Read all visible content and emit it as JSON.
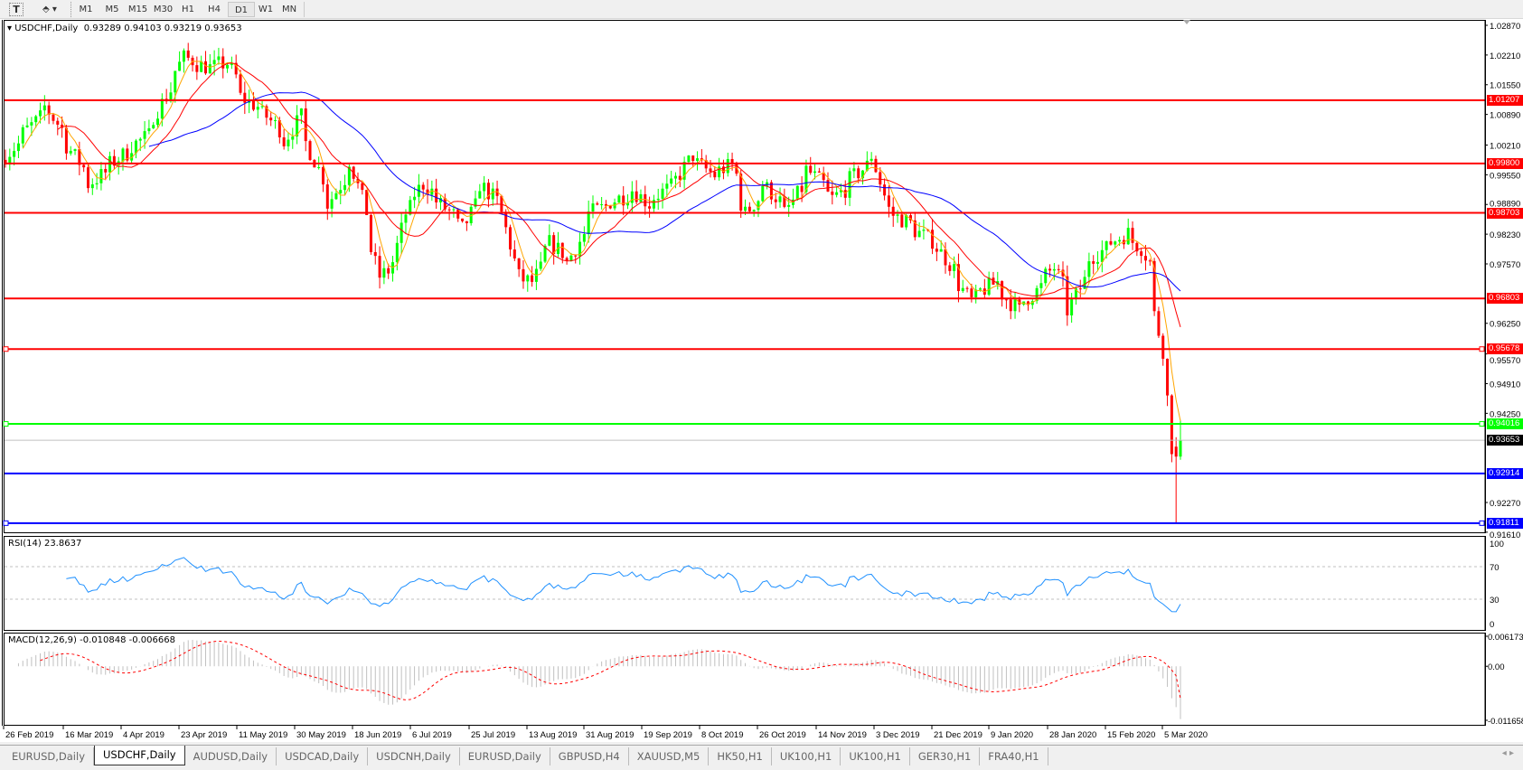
{
  "toolbar": {
    "icons": [
      "text-tool-icon",
      "objects-dropdown-icon"
    ],
    "timeframes": [
      "M1",
      "M5",
      "M15",
      "M30",
      "H1",
      "H4",
      "D1",
      "W1",
      "MN"
    ],
    "active_timeframe": "D1"
  },
  "chart": {
    "symbol_label": "USDCHF,Daily",
    "ohlc_label": "0.93289 0.94103 0.93219 0.93653",
    "rsi_label": "RSI(14) 23.8637",
    "macd_label": "MACD(12,26,9) -0.010848 -0.006668"
  },
  "tabs": [
    "EURUSD,Daily",
    "USDCHF,Daily",
    "AUDUSD,Daily",
    "USDCAD,Daily",
    "USDCNH,Daily",
    "EURUSD,Daily",
    "GBPUSD,H4",
    "XAUUSD,M5",
    "HK50,H1",
    "UK100,H1",
    "UK100,H1",
    "GER30,H1",
    "FRA40,H1"
  ],
  "active_tab": 1,
  "chart_data": {
    "type": "candlestick",
    "symbol": "USDCHF",
    "timeframe": "Daily",
    "last_bar": {
      "open": 0.93289,
      "high": 0.94103,
      "low": 0.93219,
      "close": 0.93653
    },
    "up_color": "#00ff00",
    "down_color": "#ff0000",
    "close_keypoints": [
      [
        "2019-02-26",
        0.9998
      ],
      [
        "2019-03-11",
        1.0106
      ],
      [
        "2019-03-25",
        0.9934
      ],
      [
        "2019-04-04",
        0.9998
      ],
      [
        "2019-04-12",
        1.0042
      ],
      [
        "2019-04-24",
        1.0215
      ],
      [
        "2019-05-02",
        1.0193
      ],
      [
        "2019-05-08",
        1.0203
      ],
      [
        "2019-05-13",
        1.0128
      ],
      [
        "2019-05-21",
        1.0084
      ],
      [
        "2019-05-27",
        1.003
      ],
      [
        "2019-05-31",
        1.0084
      ],
      [
        "2019-06-10",
        0.989
      ],
      [
        "2019-06-17",
        0.9988
      ],
      [
        "2019-06-26",
        0.9729
      ],
      [
        "2019-07-01",
        0.9761
      ],
      [
        "2019-07-04",
        0.9869
      ],
      [
        "2019-07-10",
        0.9934
      ],
      [
        "2019-07-23",
        0.9835
      ],
      [
        "2019-07-29",
        0.9934
      ],
      [
        "2019-08-05",
        0.9869
      ],
      [
        "2019-08-09",
        0.9729
      ],
      [
        "2019-08-14",
        0.9717
      ],
      [
        "2019-08-20",
        0.9803
      ],
      [
        "2019-08-26",
        0.9761
      ],
      [
        "2019-09-02",
        0.9869
      ],
      [
        "2019-09-16",
        0.9922
      ],
      [
        "2019-09-20",
        0.989
      ],
      [
        "2019-09-30",
        0.9944
      ],
      [
        "2019-10-04",
        0.9998
      ],
      [
        "2019-10-11",
        0.9954
      ],
      [
        "2019-10-17",
        0.9976
      ],
      [
        "2019-10-22",
        0.9869
      ],
      [
        "2019-10-28",
        0.9934
      ],
      [
        "2019-11-04",
        0.9869
      ],
      [
        "2019-11-11",
        0.9966
      ],
      [
        "2019-11-19",
        0.9902
      ],
      [
        "2019-11-25",
        0.9944
      ],
      [
        "2019-12-02",
        0.9998
      ],
      [
        "2019-12-06",
        0.9879
      ],
      [
        "2019-12-13",
        0.9847
      ],
      [
        "2019-12-23",
        0.9793
      ],
      [
        "2020-01-02",
        0.9675
      ],
      [
        "2020-01-10",
        0.9717
      ],
      [
        "2020-01-17",
        0.9653
      ],
      [
        "2020-01-23",
        0.9697
      ],
      [
        "2020-01-29",
        0.9749
      ],
      [
        "2020-02-03",
        0.9653
      ],
      [
        "2020-02-10",
        0.9771
      ],
      [
        "2020-02-21",
        0.9825
      ],
      [
        "2020-02-26",
        0.9793
      ],
      [
        "2020-02-28",
        0.9761
      ],
      [
        "2020-03-04",
        0.9566
      ],
      [
        "2020-03-06",
        0.9351
      ],
      [
        "2020-03-09",
        0.9329
      ],
      [
        "2020-03-10",
        0.93653
      ]
    ],
    "moving_averages": [
      {
        "color": "#ffa500"
      },
      {
        "color": "#ff0000"
      },
      {
        "color": "#0000ff"
      }
    ],
    "price_ticks": [
      "1.02870",
      "1.02210",
      "1.01550",
      "1.00890",
      "1.00210",
      "0.99550",
      "0.98890",
      "0.98230",
      "0.97570",
      "0.96250",
      "0.95570",
      "0.94910",
      "0.94250",
      "0.92270",
      "0.91610"
    ],
    "horizontal_lines": [
      {
        "price": "1.01207",
        "color": "#ff0000"
      },
      {
        "price": "0.99800",
        "color": "#ff0000"
      },
      {
        "price": "0.98703",
        "color": "#ff0000"
      },
      {
        "price": "0.96803",
        "color": "#ff0000"
      },
      {
        "price": "0.95678",
        "color": "#ff0000"
      },
      {
        "price": "0.94016",
        "color": "#00ff00"
      },
      {
        "price": "0.93653",
        "color": "#c0c0c0",
        "label_color": "#000000"
      },
      {
        "price": "0.92914",
        "color": "#0000ff"
      },
      {
        "price": "0.91811",
        "color": "#0000ff"
      }
    ],
    "time_ticks": [
      "26 Feb 2019",
      "16 Mar 2019",
      "4 Apr 2019",
      "23 Apr 2019",
      "11 May 2019",
      "30 May 2019",
      "18 Jun 2019",
      "6 Jul 2019",
      "25 Jul 2019",
      "13 Aug 2019",
      "31 Aug 2019",
      "19 Sep 2019",
      "8 Oct 2019",
      "26 Oct 2019",
      "14 Nov 2019",
      "3 Dec 2019",
      "21 Dec 2019",
      "9 Jan 2020",
      "28 Jan 2020",
      "15 Feb 2020",
      "5 Mar 2020"
    ],
    "rsi": {
      "period": 14,
      "value": 23.8637,
      "ticks": [
        "100",
        "70",
        "30",
        "0"
      ],
      "levels": [
        70,
        30
      ],
      "color": "#1e90ff"
    },
    "macd": {
      "fast": 12,
      "slow": 26,
      "signal": 9,
      "main": -0.010848,
      "signal_value": -0.006668,
      "ticks": [
        "0.006173",
        "0.00",
        "-0.011658"
      ],
      "histogram_color": "#c0c0c0",
      "signal_color": "#ff0000"
    }
  }
}
